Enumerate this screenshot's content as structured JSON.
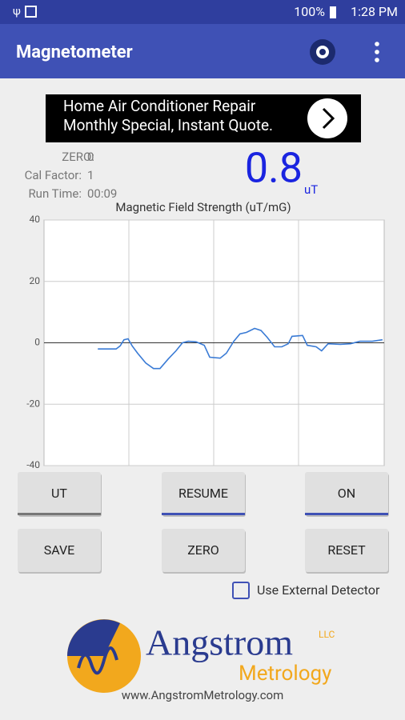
{
  "status_bar": {
    "battery": "100%",
    "time": "1:28 PM"
  },
  "app_bar": {
    "title": "Magnetometer"
  },
  "ad": {
    "line1": "Home Air Conditioner Repair",
    "line2": "Monthly Special, Instant Quote."
  },
  "readings": [
    {
      "label": "ZERO:",
      "value": 0
    },
    {
      "label": "Cal Factor:",
      "value": 1
    },
    {
      "label": "Run Time:",
      "value": "00:09"
    }
  ],
  "reading": {
    "value": 0.8,
    "unit": "uT"
  },
  "chart_data": {
    "type": "line",
    "title": "Magnetic Field Strength (uT/mG)",
    "x": [
      15.8,
      21.2,
      22.4,
      23.5,
      24.7,
      25.9,
      27.5,
      29.9,
      32.2,
      34.1,
      36.5,
      38.8,
      40.7,
      42.4,
      44.7,
      47.1,
      48.7,
      51.8,
      53.6,
      55.8,
      57.6,
      59.5,
      61.9,
      63.8,
      65.6,
      67.8,
      69.9,
      71.8,
      72.9,
      76,
      77.4,
      80,
      81.6,
      83.5,
      87.1,
      90.1,
      92.9,
      96.5,
      99.5
    ],
    "series": [
      {
        "color": "#3a7bd5",
        "values": [
          -2,
          -2,
          -1,
          1,
          1.3,
          -1,
          -3.4,
          -6.6,
          -8.4,
          -8.4,
          -5.3,
          -2.6,
          0,
          0.5,
          0.3,
          -0.8,
          -4.7,
          -5,
          -3.4,
          0.5,
          2.9,
          3.4,
          4.7,
          4,
          1.8,
          -1.3,
          -1.3,
          -0.3,
          2.1,
          2.4,
          -0.8,
          -1.3,
          -2.6,
          -0.3,
          -0.5,
          -0.3,
          0.5,
          0.5,
          1
        ]
      }
    ],
    "xlim": [
      0,
      100
    ],
    "ylim": [
      -40,
      40
    ],
    "yticks": [
      -40,
      -20,
      0,
      20,
      40
    ],
    "grid": true
  },
  "buttons": [
    "UT",
    "RESUME",
    "ON",
    "SAVE",
    "ZERO",
    "RESET"
  ],
  "checkbox": {
    "label": "Use External Detector",
    "checked": false
  },
  "logo": {
    "name": "Angstrom",
    "suffix": "LLC",
    "subtitle": "Metrology",
    "url": "www.AngstromMetrology.com"
  }
}
